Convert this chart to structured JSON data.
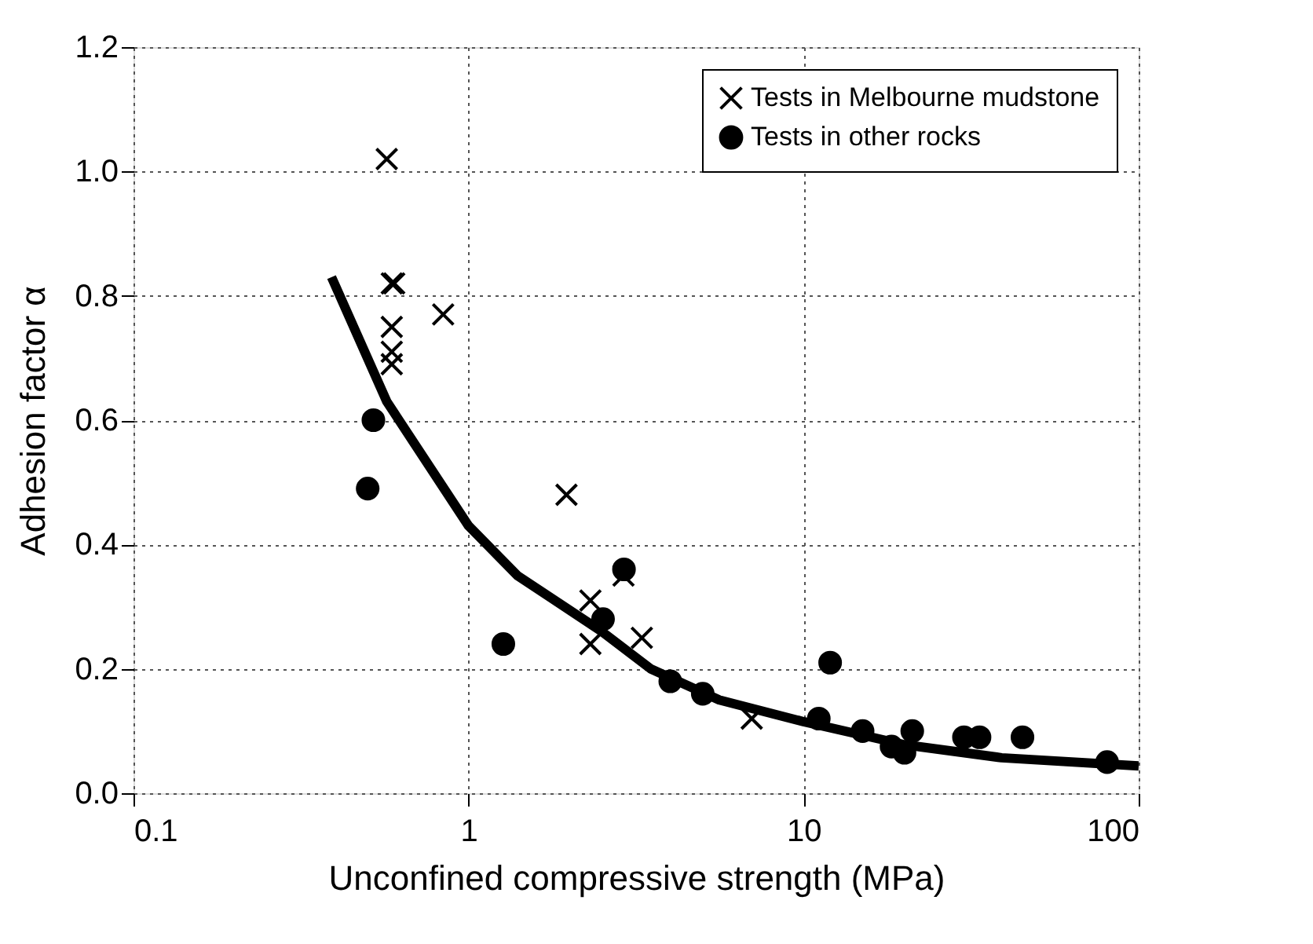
{
  "chart_data": {
    "type": "scatter",
    "xlabel": "Unconfined compressive strength (MPa)",
    "ylabel": "Adhesion factor α",
    "log": "x",
    "grid": true,
    "legend": "top right",
    "xlim": [
      0.1,
      100
    ],
    "xticks": [
      0.1,
      1,
      10,
      100
    ],
    "ylim": [
      0,
      1.2
    ],
    "yticks": [
      {
        "value": 0,
        "label": "0.0"
      },
      {
        "value": 0.2,
        "label": "0.2"
      },
      {
        "value": 0.4,
        "label": "0.4"
      },
      {
        "value": 0.6,
        "label": "0.6"
      },
      {
        "value": 0.8,
        "label": "0.8"
      },
      {
        "value": 1.0,
        "label": "1.0"
      },
      {
        "value": 1.2,
        "label": "1.2"
      }
    ],
    "series": [
      {
        "name": "Tests in Melbourne mudstone",
        "marker": "cross",
        "color": "#000000",
        "x": [
          0.57,
          0.59,
          0.6,
          0.84,
          0.59,
          0.59,
          0.59,
          1.96,
          2.31,
          2.31,
          2.9,
          3.29,
          7.0
        ],
        "values": [
          1.02,
          0.82,
          0.82,
          0.77,
          0.75,
          0.71,
          0.69,
          0.48,
          0.31,
          0.24,
          0.35,
          0.25,
          0.12
        ]
      },
      {
        "name": "Tests in other rocks",
        "marker": "circle",
        "color": "#000000",
        "x": [
          0.52,
          0.5,
          1.27,
          2.52,
          2.91,
          4.0,
          5.0,
          11.1,
          12.0,
          15.0,
          18.3,
          20.0,
          21.1,
          30.1,
          33.5,
          45,
          80.5
        ],
        "values": [
          0.6,
          0.49,
          0.24,
          0.28,
          0.36,
          0.18,
          0.16,
          0.12,
          0.21,
          0.1,
          0.075,
          0.065,
          0.1,
          0.09,
          0.09,
          0.09,
          0.05
        ]
      },
      {
        "type": "line",
        "color": "#000000",
        "x": [
          0.39,
          0.57,
          1.0,
          1.4,
          2.5,
          3.5,
          5.6,
          10,
          20,
          39,
          100
        ],
        "values": [
          0.83,
          0.63,
          0.43,
          0.35,
          0.26,
          0.2,
          0.15,
          0.115,
          0.078,
          0.057,
          0.044
        ]
      }
    ]
  }
}
